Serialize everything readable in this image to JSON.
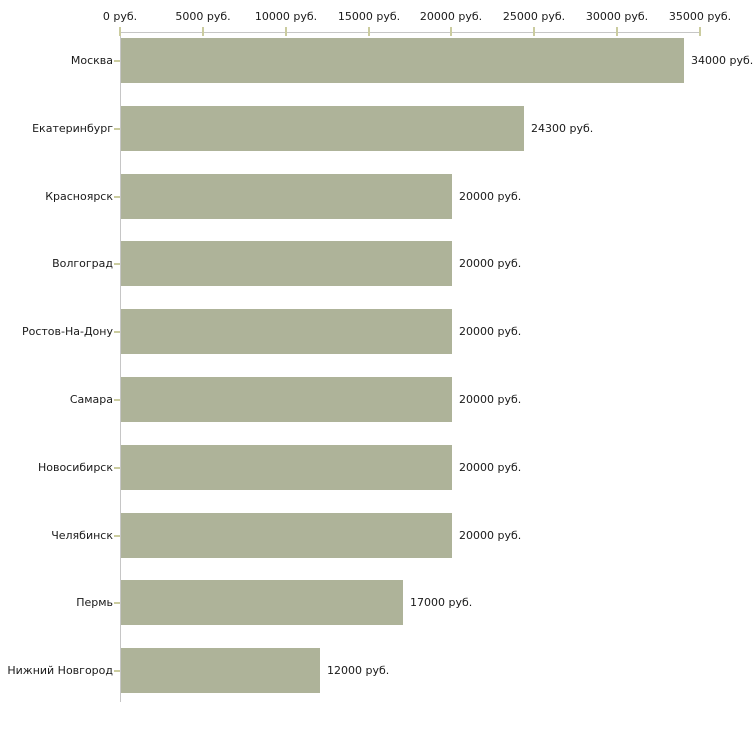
{
  "chart_data": {
    "type": "bar",
    "orientation": "horizontal",
    "title": "",
    "xlabel": "",
    "ylabel": "",
    "grid": false,
    "legend": null,
    "categories": [
      "Москва",
      "Екатеринбург",
      "Красноярск",
      "Волгоград",
      "Ростов-На-Дону",
      "Самара",
      "Новосибирск",
      "Челябинск",
      "Пермь",
      "Нижний Новгород"
    ],
    "values": [
      34000,
      24300,
      20000,
      20000,
      20000,
      20000,
      20000,
      20000,
      17000,
      12000
    ],
    "value_labels": [
      "34000 руб.",
      "24300 руб.",
      "20000 руб.",
      "20000 руб.",
      "20000 руб.",
      "20000 руб.",
      "20000 руб.",
      "20000 руб.",
      "17000 руб.",
      "12000 руб."
    ],
    "x_axis": {
      "position": "top",
      "min": 0,
      "max": 35000,
      "ticks": [
        0,
        5000,
        10000,
        15000,
        20000,
        25000,
        30000,
        35000
      ],
      "tick_labels": [
        "0 руб.",
        "5000 руб.",
        "10000 руб.",
        "15000 руб.",
        "20000 руб.",
        "25000 руб.",
        "30000 руб.",
        "35000 руб."
      ]
    },
    "colors": {
      "bar": "#aeb399",
      "axis": "#c6c6c6",
      "tick": "#cbcc9f",
      "text": "#1a1a1a",
      "background": "#ffffff"
    }
  }
}
